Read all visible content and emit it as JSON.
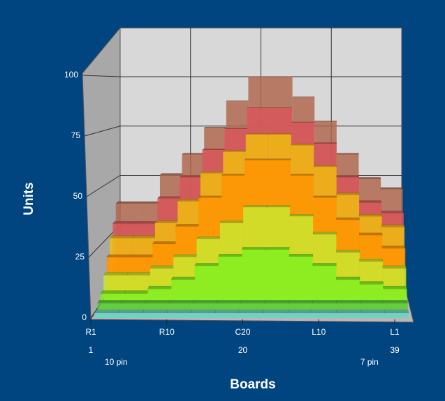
{
  "chart_data": {
    "type": "step-area-3d",
    "x_label": "Boards",
    "y_label": "Units",
    "categories": [
      "R1",
      null,
      null,
      "R10",
      null,
      null,
      "C20",
      null,
      null,
      "L10",
      null,
      null,
      "L1"
    ],
    "categories_row2": [
      "1",
      null,
      null,
      null,
      null,
      null,
      "20",
      null,
      null,
      null,
      null,
      null,
      "39"
    ],
    "categories_row3": [
      null,
      "10 pin",
      null,
      null,
      null,
      null,
      null,
      null,
      null,
      null,
      null,
      "7 pin",
      null
    ],
    "ylim": [
      0,
      100
    ],
    "yticks": [
      0,
      25,
      50,
      75,
      100
    ],
    "grid": true,
    "series": [
      {
        "color": "#b0654a",
        "values": [
          38,
          38,
          52,
          62,
          75,
          88,
          100,
          100,
          90,
          78,
          62,
          50,
          45
        ]
      },
      {
        "color": "#d9545a",
        "values": [
          30,
          30,
          42,
          52,
          65,
          75,
          85,
          85,
          78,
          68,
          52,
          40,
          35
        ]
      },
      {
        "color": "#f2c010",
        "values": [
          25,
          25,
          32,
          42,
          55,
          65,
          73,
          73,
          68,
          58,
          45,
          35,
          30
        ]
      },
      {
        "color": "#ff9400",
        "values": [
          18,
          18,
          24,
          32,
          45,
          55,
          62,
          62,
          55,
          45,
          35,
          28,
          22
        ]
      },
      {
        "color": "#c8ea30",
        "values": [
          12,
          12,
          15,
          20,
          28,
          35,
          42,
          42,
          38,
          30,
          22,
          18,
          15
        ]
      },
      {
        "color": "#7ff020",
        "values": [
          6,
          6,
          8,
          12,
          18,
          22,
          25,
          25,
          22,
          18,
          12,
          10,
          8
        ]
      },
      {
        "color": "#5cc83c",
        "values": [
          4,
          4,
          4,
          4,
          4,
          4,
          4,
          4,
          4,
          4,
          4,
          4,
          4
        ]
      },
      {
        "color": "#66d6c4",
        "values": [
          2,
          2,
          2,
          2,
          2,
          2,
          2,
          2,
          2,
          2,
          2,
          2,
          2
        ]
      }
    ]
  }
}
